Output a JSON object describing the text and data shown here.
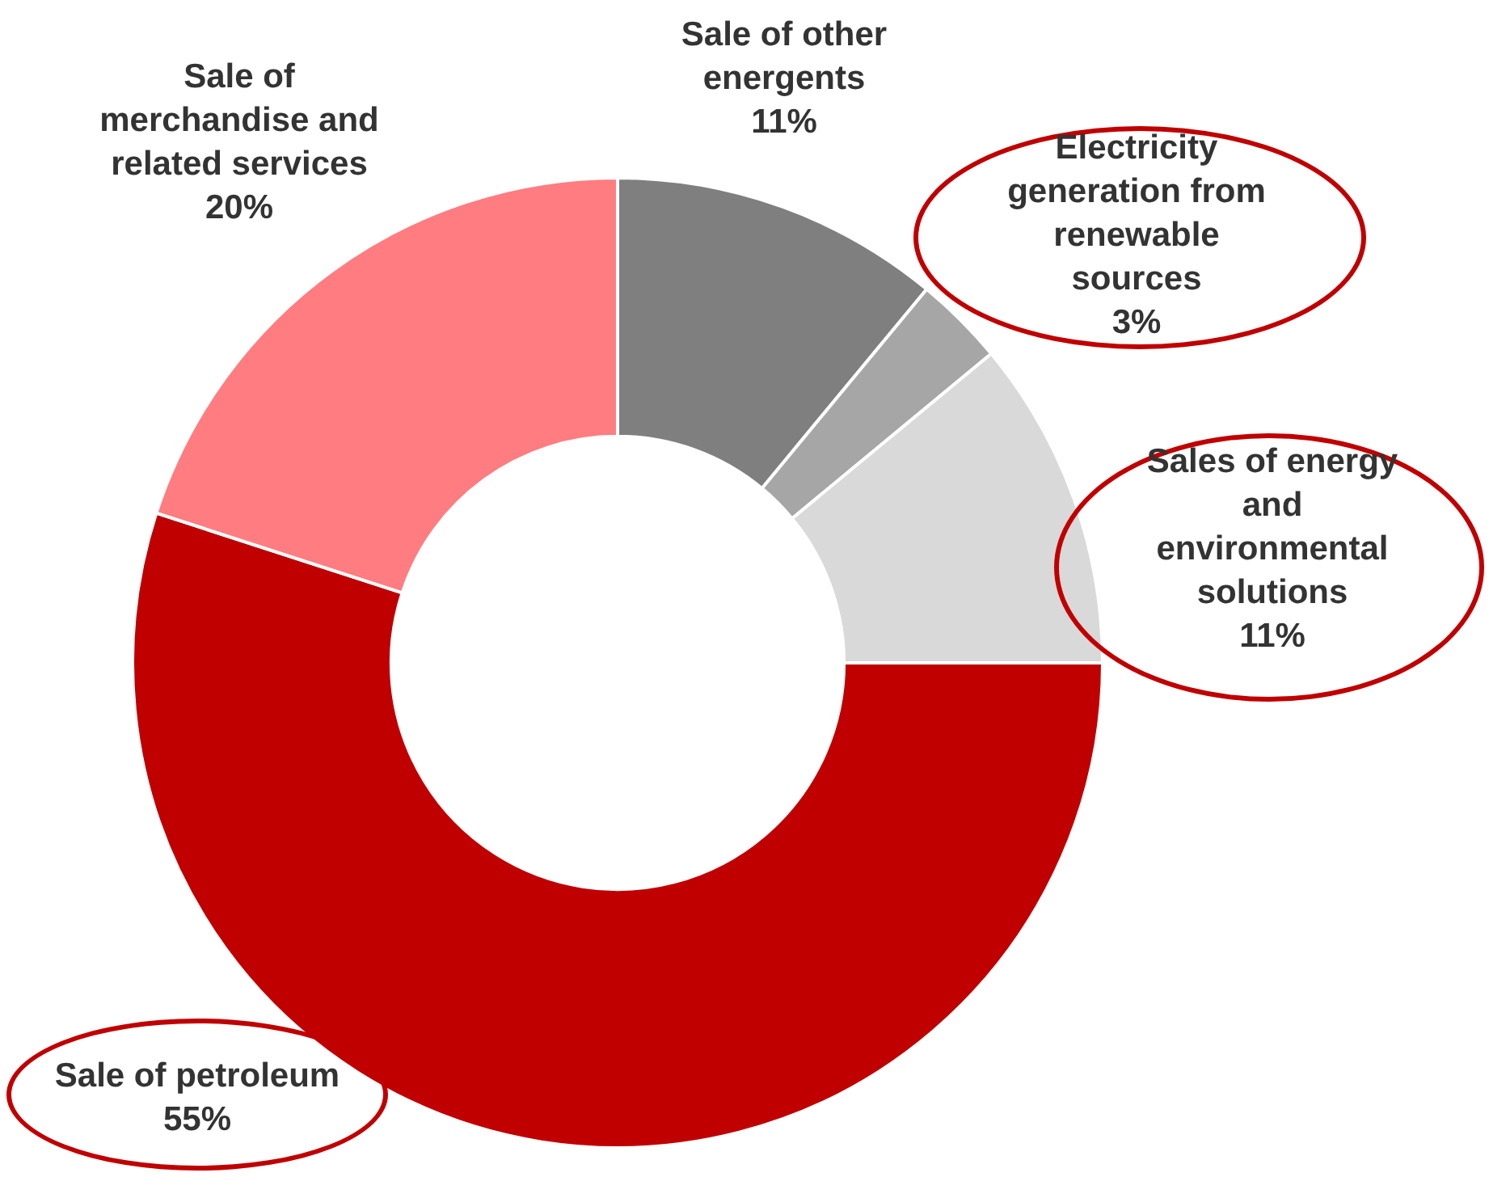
{
  "chart_data": {
    "type": "donut",
    "categories": [
      "Sale of other energents",
      "Electricity generation from renewable sources",
      "Sales of energy and environmental solutions",
      "Sale of petroleum",
      "Sale of merchandise and related services"
    ],
    "values": [
      11,
      3,
      11,
      55,
      20
    ],
    "value_labels": [
      "11%",
      "3%",
      "11%",
      "55%",
      "20%"
    ],
    "colors": [
      "#7f7f7f",
      "#a6a6a6",
      "#d9d9d9",
      "#c00000",
      "#ff7c80"
    ],
    "legend": false
  }
}
